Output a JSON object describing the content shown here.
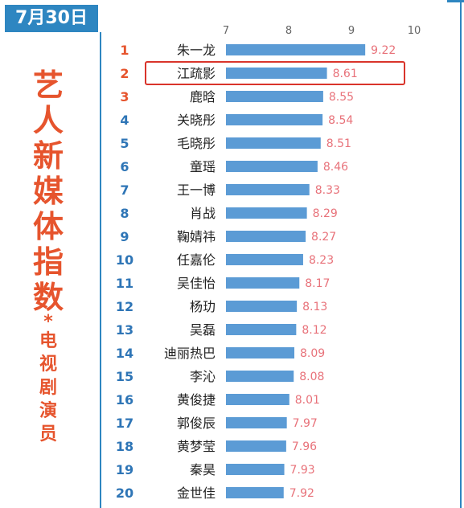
{
  "header": {
    "date": "7月30日"
  },
  "sidebar": {
    "title_chars": [
      "艺",
      "人",
      "新",
      "媒",
      "体",
      "指",
      "数"
    ],
    "star": "*",
    "subtitle_chars": [
      "电",
      "视",
      "剧",
      "演",
      "员"
    ]
  },
  "colors": {
    "accent": "#2e86c1",
    "bar": "#5b9bd5",
    "rank_red": "#e6542d",
    "rank_blue": "#2e75b6",
    "value_label": "#e8727a",
    "highlight_box": "#d9342b"
  },
  "chart_data": {
    "type": "bar",
    "orientation": "horizontal",
    "xlim": [
      7,
      10
    ],
    "xticks": [
      "7",
      "8",
      "9",
      "10"
    ],
    "ranks": [
      "1",
      "2",
      "3",
      "4",
      "5",
      "6",
      "7",
      "8",
      "9",
      "10",
      "11",
      "12",
      "13",
      "14",
      "15",
      "16",
      "17",
      "18",
      "19",
      "20"
    ],
    "categories": [
      "朱一龙",
      "江疏影",
      "鹿晗",
      "关晓彤",
      "毛晓彤",
      "童瑶",
      "王一博",
      "肖战",
      "鞠婧祎",
      "任嘉伦",
      "吴佳怡",
      "杨玏",
      "吴磊",
      "迪丽热巴",
      "李沁",
      "黄俊捷",
      "郭俊辰",
      "黄梦莹",
      "秦昊",
      "金世佳"
    ],
    "values": [
      9.22,
      8.61,
      8.55,
      8.54,
      8.51,
      8.46,
      8.33,
      8.29,
      8.27,
      8.23,
      8.17,
      8.13,
      8.12,
      8.09,
      8.08,
      8.01,
      7.97,
      7.96,
      7.93,
      7.92
    ],
    "value_labels": [
      "9.22",
      "8.61",
      "8.55",
      "8.54",
      "8.51",
      "8.46",
      "8.33",
      "8.29",
      "8.27",
      "8.23",
      "8.17",
      "8.13",
      "8.12",
      "8.09",
      "8.08",
      "8.01",
      "7.97",
      "7.96",
      "7.93",
      "7.92"
    ],
    "highlighted_index": 1,
    "grid": false
  }
}
